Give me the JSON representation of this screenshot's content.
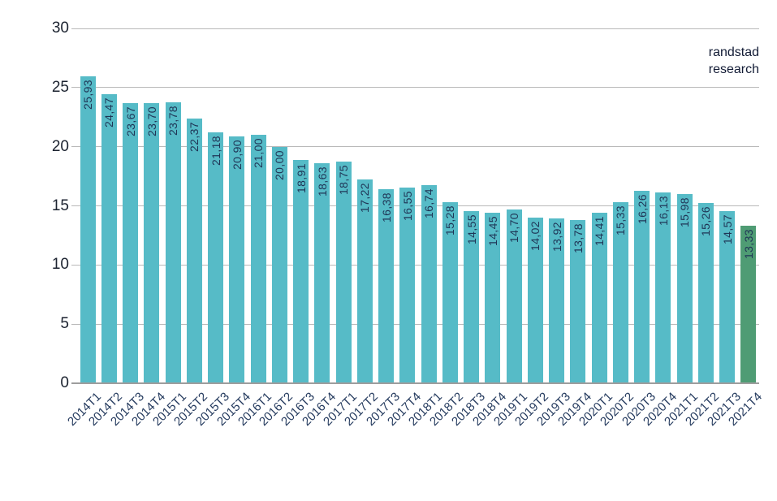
{
  "brand": {
    "line1": "randstad",
    "line2": "research"
  },
  "chart_data": {
    "type": "bar",
    "title": "",
    "xlabel": "",
    "ylabel": "",
    "categories": [
      "2014T1",
      "2014T2",
      "2014T3",
      "2014T4",
      "2015T1",
      "2015T2",
      "2015T3",
      "2015T4",
      "2016T1",
      "2016T2",
      "2016T3",
      "2016T4",
      "2017T1",
      "2017T2",
      "2017T3",
      "2017T4",
      "2018T1",
      "2018T2",
      "2018T3",
      "2018T4",
      "2019T1",
      "2019T2",
      "2019T3",
      "2019T4",
      "2020T1",
      "2020T2",
      "2020T3",
      "2020T4",
      "2021T1",
      "2021T2",
      "2021T3",
      "2021T4"
    ],
    "values": [
      25.93,
      24.47,
      23.67,
      23.7,
      23.78,
      22.37,
      21.18,
      20.9,
      21.0,
      20.0,
      18.91,
      18.63,
      18.75,
      17.22,
      16.38,
      16.55,
      16.74,
      15.28,
      14.55,
      14.45,
      14.7,
      14.02,
      13.92,
      13.78,
      14.41,
      15.33,
      16.26,
      16.13,
      15.98,
      15.26,
      14.57,
      13.33
    ],
    "value_labels": [
      "25,93",
      "24,47",
      "23,67",
      "23,70",
      "23,78",
      "22,37",
      "21,18",
      "20,90",
      "21,00",
      "20,00",
      "18,91",
      "18,63",
      "18,75",
      "17,22",
      "16,38",
      "16,55",
      "16,74",
      "15,28",
      "14,55",
      "14,45",
      "14,70",
      "14,02",
      "13,92",
      "13,78",
      "14,41",
      "15,33",
      "16,26",
      "16,13",
      "15,98",
      "15,26",
      "14,57",
      "13,33"
    ],
    "ylim": [
      0,
      30
    ],
    "yticks": [
      0,
      5,
      10,
      15,
      20,
      25,
      30
    ],
    "ytick_labels": [
      "0",
      "5",
      "10",
      "15",
      "20",
      "25",
      "30"
    ],
    "grid": true,
    "legend": "none",
    "bar_color": "#56bbc7",
    "highlight_color": "#4f9c74",
    "highlight_index": 31,
    "value_label_color": "#1f3556",
    "xtick_label_color": "#243a5e",
    "ytick_label_color": "#1c2330",
    "gridline_color": "#b9b9b9",
    "baseline_color": "#9d9d9d"
  }
}
